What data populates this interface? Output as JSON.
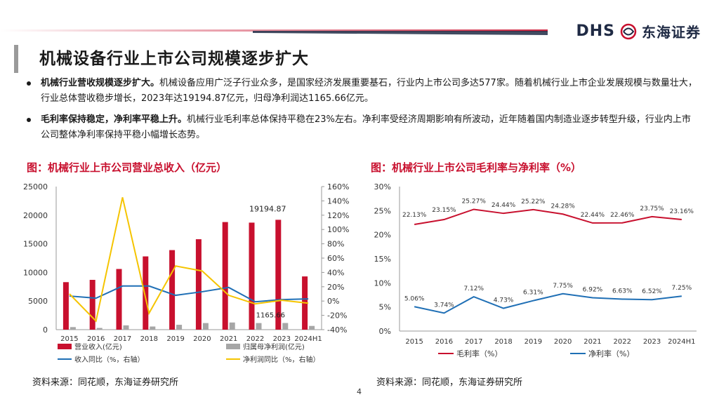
{
  "brand": {
    "logo_text": "DHS",
    "logo_name": "东海证券",
    "accent_red": "#c8102e",
    "navy": "#1f2a44"
  },
  "title": "机械设备行业上市公司规模逐步扩大",
  "bullets": [
    {
      "lead": "机械行业营收规模逐步扩大。",
      "text": "机械设备应用广泛子行业众多，是国家经济发展重要基石，行业内上市公司多达577家。随着机械行业上市企业发展规模与数量壮大，行业总体营收稳步增长，2023年达19194.87亿元，归母净利润达1165.66亿元。"
    },
    {
      "lead": "毛利率保持稳定，净利率平稳上升。",
      "text": "机械行业毛利率总体保持平稳在23%左右。净利率受经济周期影响有所波动，近年随着国内制造业逐步转型升级，行业内上市公司整体净利率保持平稳小幅增长态势。"
    }
  ],
  "sources": {
    "left": "资料来源：同花顺，东海证券研究所",
    "right": "资料来源：同花顺，东海证券研究所"
  },
  "page_number": "4",
  "chart_data": [
    {
      "type": "bar",
      "title": "图：机械行业上市公司营业总收入（亿元）",
      "categories": [
        "2015",
        "2016",
        "2017",
        "2018",
        "2019",
        "2020",
        "2021",
        "2022",
        "2023",
        "2024H1"
      ],
      "left_axis": {
        "ylim": [
          0,
          25000
        ],
        "ticks": [
          "0",
          "5000",
          "10000",
          "15000",
          "20000",
          "25000"
        ]
      },
      "right_axis": {
        "ylim": [
          -40,
          160
        ],
        "ticks": [
          "-40%",
          "-20%",
          "0%",
          "20%",
          "40%",
          "60%",
          "80%",
          "100%",
          "120%",
          "140%",
          "160%"
        ]
      },
      "series": [
        {
          "name": "营业收入(亿元)",
          "kind": "bar",
          "axis": "left",
          "color": "#c8102e",
          "values": [
            8300,
            8700,
            10600,
            12800,
            13900,
            15800,
            18800,
            18700,
            19194.87,
            9300
          ]
        },
        {
          "name": "归属母净利润(亿元)",
          "kind": "bar",
          "axis": "left",
          "color": "#a6a6a6",
          "values": [
            450,
            300,
            750,
            550,
            850,
            1150,
            1250,
            1150,
            1165.66,
            650
          ]
        },
        {
          "name": "收入同比（%，右轴）",
          "kind": "line",
          "axis": "right",
          "color": "#1f6fb5",
          "values": [
            7,
            4,
            21,
            21,
            8,
            13,
            19,
            -1,
            2,
            3
          ]
        },
        {
          "name": "净利润同比（%，右轴）",
          "kind": "line",
          "axis": "right",
          "color": "#f5c400",
          "values": [
            10,
            -28,
            145,
            -17,
            49,
            42,
            8,
            -4,
            1,
            -3
          ]
        }
      ],
      "annotations": [
        {
          "text": "19194.87",
          "category": "2023",
          "series": "营业收入(亿元)"
        },
        {
          "text": "1165.66",
          "category": "2023",
          "series": "归属母净利润(亿元)"
        }
      ]
    },
    {
      "type": "line",
      "title": "图：机械行业上市公司毛利率与净利率（%）",
      "categories": [
        "2015",
        "2016",
        "2017",
        "2018",
        "2019",
        "2020",
        "2021",
        "2022",
        "2023",
        "2024H1"
      ],
      "ylim": [
        0,
        30
      ],
      "ticks": [
        "0%",
        "5%",
        "10%",
        "15%",
        "20%",
        "25%",
        "30%"
      ],
      "series": [
        {
          "name": "毛利率（%）",
          "color": "#c8102e",
          "values": [
            22.13,
            23.15,
            25.27,
            24.44,
            25.22,
            24.28,
            22.44,
            22.46,
            23.75,
            23.16
          ],
          "labels": [
            "22.13%",
            "23.15%",
            "25.27%",
            "24.44%",
            "25.22%",
            "24.28%",
            "22.44%",
            "22.46%",
            "23.75%",
            "23.16%"
          ]
        },
        {
          "name": "净利率（%）",
          "color": "#1f6fb5",
          "values": [
            5.06,
            3.74,
            7.12,
            4.73,
            6.31,
            7.75,
            6.92,
            6.63,
            6.52,
            7.25
          ],
          "labels": [
            "5.06%",
            "3.74%",
            "7.12%",
            "4.73%",
            "6.31%",
            "7.75%",
            "6.92%",
            "6.63%",
            "6.52%",
            "7.25%"
          ]
        }
      ]
    }
  ]
}
